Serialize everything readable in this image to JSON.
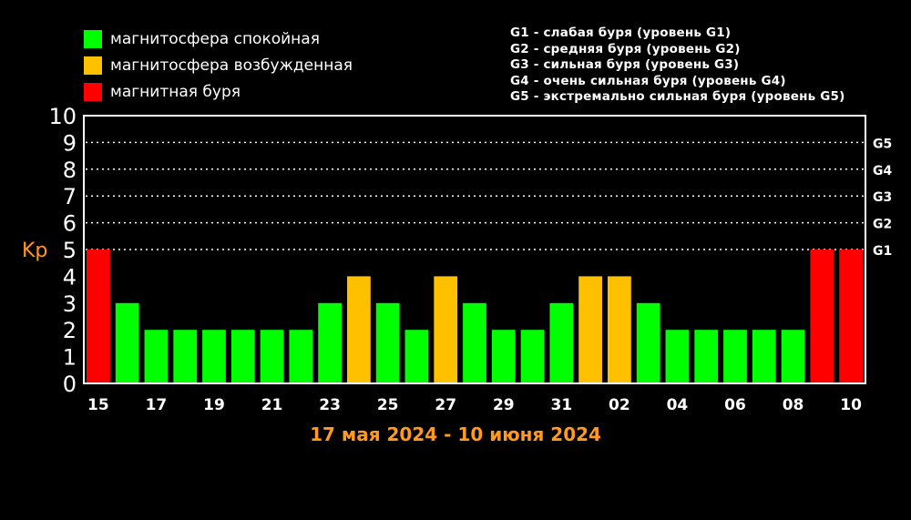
{
  "legend": {
    "items": [
      {
        "label": "магнитосфера спокойная",
        "color": "#00ff00"
      },
      {
        "label": "магнитосфера возбужденная",
        "color": "#ffc000"
      },
      {
        "label": "магнитная буря",
        "color": "#ff0000"
      }
    ],
    "g_levels": [
      "G1 - слабая буря (уровень G1)",
      "G2 - средняя буря (уровень G2)",
      "G3 - сильная буря (уровень G3)",
      "G4 - очень сильная буря (уровень G4)",
      "G5 - экстремально сильная буря (уровень G5)"
    ]
  },
  "period": "17 мая 2024 - 10 июня 2024",
  "chart_data": {
    "type": "bar",
    "ylabel": "Kp",
    "ylim": [
      0,
      10
    ],
    "y_ticks": [
      "0",
      "1",
      "2",
      "3",
      "4",
      "5",
      "6",
      "7",
      "8",
      "9",
      "10"
    ],
    "right_ticks": [
      {
        "value": 5,
        "label": "G1"
      },
      {
        "value": 6,
        "label": "G2"
      },
      {
        "value": 7,
        "label": "G3"
      },
      {
        "value": 8,
        "label": "G4"
      },
      {
        "value": 9,
        "label": "G5"
      }
    ],
    "grid": "dotted at 5-9",
    "x_tick_labels": [
      "15",
      "",
      "17",
      "",
      "19",
      "",
      "21",
      "",
      "23",
      "",
      "25",
      "",
      "27",
      "",
      "29",
      "",
      "31",
      "",
      "02",
      "",
      "04",
      "",
      "06",
      "",
      "08",
      "",
      "10"
    ],
    "values": [
      5,
      3,
      2,
      2,
      2,
      2,
      2,
      2,
      3,
      4,
      3,
      2,
      4,
      3,
      2,
      2,
      3,
      4,
      4,
      3,
      2,
      2,
      2,
      2,
      2,
      5,
      5
    ],
    "colors": {
      "quiet": "#00ff00",
      "active": "#ffc000",
      "storm": "#ff0000"
    },
    "category_rule": "quiet <4, active 4, storm >=5",
    "ylabel_color": "#ff9a1f"
  }
}
